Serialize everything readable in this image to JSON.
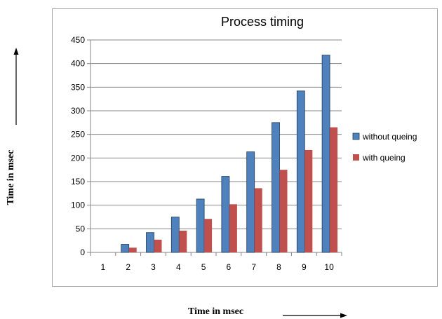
{
  "chart_data": {
    "type": "bar",
    "title": "Process timing",
    "xlabel": "Time in msec",
    "ylabel": "Time in msec",
    "categories": [
      "1",
      "2",
      "3",
      "4",
      "5",
      "6",
      "7",
      "8",
      "9",
      "10"
    ],
    "series": [
      {
        "name": "without queing",
        "color": "#4f81bd",
        "values": [
          0,
          17,
          42,
          75,
          113,
          161,
          213,
          275,
          342,
          418
        ]
      },
      {
        "name": "with queing",
        "color": "#c0504d",
        "values": [
          0,
          10,
          27,
          46,
          71,
          102,
          136,
          175,
          217,
          265
        ]
      }
    ],
    "ylim": [
      0,
      450
    ],
    "yticks": [
      0,
      50,
      100,
      150,
      200,
      250,
      300,
      350,
      400,
      450
    ],
    "grid": true,
    "legend": "right"
  }
}
